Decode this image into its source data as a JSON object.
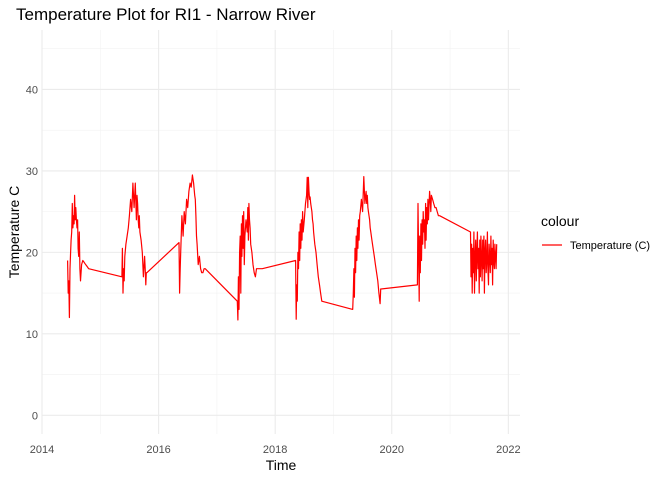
{
  "chart_data": {
    "type": "line",
    "title": "Temperature Plot for RI1 - Narrow River",
    "xlabel": "Time",
    "ylabel": "Temperature C",
    "xlim": [
      2014.0,
      2022.2
    ],
    "ylim": [
      -2.3,
      47.3
    ],
    "x_ticks": [
      2014,
      2016,
      2018,
      2020,
      2022
    ],
    "x_tick_labels": [
      "2014",
      "2016",
      "2018",
      "2020",
      "2022"
    ],
    "y_ticks": [
      0,
      10,
      20,
      30,
      40
    ],
    "y_tick_labels": [
      "0",
      "10",
      "20",
      "30",
      "40"
    ],
    "grid": true,
    "legend": {
      "title": "colour",
      "position": "right",
      "entries": [
        "Temperature (C)"
      ]
    },
    "series": [
      {
        "name": "Temperature (C)",
        "color": "#ff0000",
        "x": [
          2014.44,
          2014.45,
          2014.46,
          2014.47,
          2014.48,
          2014.49,
          2014.5,
          2014.51,
          2014.52,
          2014.53,
          2014.54,
          2014.55,
          2014.56,
          2014.57,
          2014.58,
          2014.59,
          2014.6,
          2014.61,
          2014.62,
          2014.63,
          2014.64,
          2014.65,
          2014.66,
          2014.68,
          2014.7,
          2014.72,
          2014.74,
          2014.76,
          2014.78,
          2014.8,
          2015.37,
          2015.38,
          2015.39,
          2015.4,
          2015.41,
          2015.42,
          2015.44,
          2015.46,
          2015.48,
          2015.5,
          2015.52,
          2015.54,
          2015.56,
          2015.58,
          2015.6,
          2015.62,
          2015.63,
          2015.64,
          2015.65,
          2015.66,
          2015.67,
          2015.68,
          2015.7,
          2015.72,
          2015.74,
          2015.76,
          2015.77,
          2015.78,
          2015.79,
          2015.8,
          2016.35,
          2016.36,
          2016.37,
          2016.38,
          2016.4,
          2016.42,
          2016.44,
          2016.46,
          2016.48,
          2016.5,
          2016.52,
          2016.54,
          2016.56,
          2016.58,
          2016.6,
          2016.62,
          2016.63,
          2016.64,
          2016.65,
          2016.66,
          2016.68,
          2016.7,
          2016.72,
          2016.74,
          2016.76,
          2016.78,
          2016.8,
          2017.35,
          2017.36,
          2017.37,
          2017.38,
          2017.39,
          2017.4,
          2017.41,
          2017.42,
          2017.43,
          2017.44,
          2017.45,
          2017.46,
          2017.47,
          2017.48,
          2017.5,
          2017.52,
          2017.53,
          2017.54,
          2017.55,
          2017.56,
          2017.57,
          2017.58,
          2017.6,
          2017.62,
          2017.64,
          2017.66,
          2017.68,
          2017.7,
          2017.72,
          2017.74,
          2017.76,
          2017.78,
          2018.35,
          2018.36,
          2018.37,
          2018.38,
          2018.39,
          2018.4,
          2018.41,
          2018.42,
          2018.43,
          2018.44,
          2018.45,
          2018.46,
          2018.47,
          2018.48,
          2018.5,
          2018.52,
          2018.54,
          2018.55,
          2018.56,
          2018.57,
          2018.58,
          2018.59,
          2018.6,
          2018.61,
          2018.62,
          2018.63,
          2018.64,
          2018.65,
          2018.66,
          2018.68,
          2018.7,
          2018.72,
          2018.74,
          2018.76,
          2018.78,
          2018.8,
          2019.33,
          2019.34,
          2019.35,
          2019.36,
          2019.37,
          2019.38,
          2019.39,
          2019.4,
          2019.41,
          2019.42,
          2019.43,
          2019.44,
          2019.45,
          2019.46,
          2019.48,
          2019.5,
          2019.52,
          2019.54,
          2019.56,
          2019.57,
          2019.58,
          2019.59,
          2019.6,
          2019.61,
          2019.62,
          2019.63,
          2019.64,
          2019.66,
          2019.68,
          2019.7,
          2019.72,
          2019.74,
          2019.76,
          2019.78,
          2019.8,
          2019.81,
          2020.44,
          2020.45,
          2020.46,
          2020.47,
          2020.48,
          2020.49,
          2020.5,
          2020.51,
          2020.52,
          2020.53,
          2020.54,
          2020.55,
          2020.56,
          2020.57,
          2020.58,
          2020.59,
          2020.6,
          2020.61,
          2020.62,
          2020.63,
          2020.64,
          2020.65,
          2020.66,
          2020.67,
          2020.68,
          2020.7,
          2020.72,
          2020.74,
          2020.76,
          2020.78,
          2020.8,
          2020.82,
          2021.35,
          2021.36,
          2021.37,
          2021.38,
          2021.39,
          2021.4,
          2021.41,
          2021.42,
          2021.43,
          2021.44,
          2021.45,
          2021.46,
          2021.47,
          2021.48,
          2021.49,
          2021.5,
          2021.51,
          2021.52,
          2021.53,
          2021.54,
          2021.55,
          2021.56,
          2021.57,
          2021.58,
          2021.59,
          2021.6,
          2021.61,
          2021.62,
          2021.63,
          2021.64,
          2021.65,
          2021.66,
          2021.67,
          2021.68,
          2021.69,
          2021.7,
          2021.71,
          2021.72,
          2021.73,
          2021.74,
          2021.75,
          2021.76,
          2021.77,
          2021.78,
          2021.79,
          2021.8
        ],
        "y": [
          19.0,
          15.0,
          16.5,
          12.0,
          18.0,
          20.0,
          21.5,
          22.5,
          26.0,
          23.0,
          24.5,
          23.5,
          27.0,
          24.0,
          25.5,
          24.0,
          23.0,
          24.0,
          20.5,
          19.5,
          22.5,
          18.0,
          16.5,
          18.5,
          19.0,
          18.8,
          18.6,
          18.4,
          18.2,
          18.0,
          17.0,
          20.5,
          15.0,
          18.0,
          16.5,
          19.5,
          21.0,
          22.0,
          23.0,
          24.5,
          26.5,
          25.0,
          28.5,
          25.5,
          28.5,
          24.0,
          27.0,
          26.0,
          24.0,
          23.0,
          24.5,
          22.5,
          21.5,
          20.0,
          17.0,
          19.5,
          18.0,
          16.0,
          17.5,
          17.5,
          21.2,
          15.0,
          18.0,
          20.0,
          24.5,
          22.0,
          25.0,
          23.5,
          26.5,
          25.5,
          27.5,
          28.5,
          28.0,
          29.5,
          28.5,
          27.0,
          26.5,
          24.5,
          22.0,
          21.0,
          18.5,
          19.5,
          18.0,
          17.5,
          17.5,
          18.0,
          18.0,
          14.0,
          11.7,
          17.0,
          13.0,
          20.0,
          22.0,
          15.0,
          23.5,
          19.5,
          24.5,
          20.5,
          25.0,
          18.5,
          22.0,
          24.0,
          22.5,
          25.5,
          21.5,
          26.0,
          24.0,
          23.0,
          21.0,
          20.0,
          18.5,
          17.5,
          17.0,
          18.0,
          18.0,
          18.0,
          18.0,
          18.0,
          18.0,
          19.0,
          11.8,
          16.0,
          14.0,
          20.0,
          18.0,
          22.5,
          19.0,
          23.5,
          20.5,
          24.0,
          21.5,
          25.0,
          22.5,
          24.0,
          26.0,
          27.0,
          29.2,
          25.5,
          29.2,
          27.5,
          26.5,
          26.8,
          26.0,
          25.5,
          25.0,
          24.0,
          23.5,
          22.5,
          21.0,
          20.0,
          18.5,
          17.0,
          16.0,
          15.0,
          14.0,
          13.0,
          15.0,
          18.0,
          14.5,
          20.5,
          17.5,
          22.0,
          19.0,
          23.0,
          20.5,
          24.0,
          21.5,
          24.5,
          25.0,
          26.5,
          25.0,
          29.3,
          26.0,
          27.5,
          26.0,
          27.0,
          25.5,
          25.0,
          24.5,
          24.0,
          23.0,
          22.5,
          21.5,
          20.5,
          19.5,
          18.5,
          17.5,
          16.5,
          15.0,
          13.7,
          15.5,
          16.0,
          26.0,
          20.0,
          14.0,
          22.0,
          17.5,
          23.5,
          19.0,
          24.0,
          21.0,
          25.0,
          22.5,
          24.0,
          20.5,
          26.0,
          21.5,
          25.5,
          23.5,
          26.5,
          24.0,
          26.0,
          27.5,
          26.5,
          25.0,
          27.0,
          26.5,
          26.0,
          25.5,
          25.5,
          25.0,
          24.5,
          24.5,
          22.5,
          17.0,
          21.0,
          15.0,
          20.5,
          17.5,
          22.5,
          15.0,
          19.5,
          21.5,
          16.5,
          20.0,
          22.5,
          18.0,
          20.5,
          15.0,
          21.5,
          17.0,
          22.0,
          19.5,
          16.5,
          21.5,
          18.0,
          22.0,
          15.0,
          20.0,
          21.5,
          17.5,
          19.0,
          22.5,
          18.0,
          16.0,
          21.0,
          19.5,
          17.5,
          22.0,
          18.5,
          20.5,
          16.0,
          21.5,
          19.0,
          18.0,
          21.0,
          19.5,
          18.0,
          21.0
        ]
      }
    ]
  }
}
